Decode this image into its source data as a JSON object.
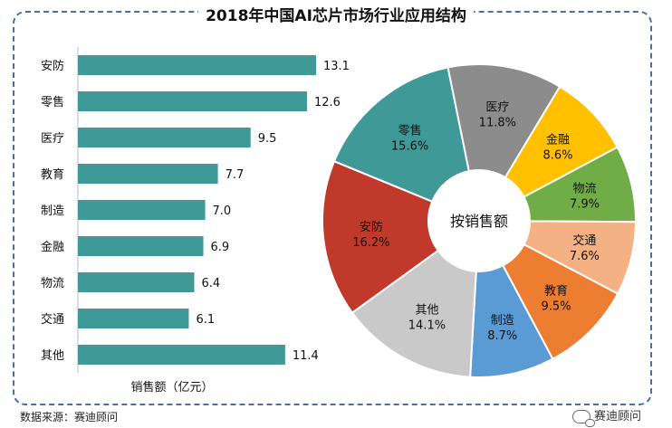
{
  "title": "2018年中国AI芯片市场行业应用结构",
  "source_label": "数据来源：赛迪顾问",
  "wechat_label": "赛迪顾问",
  "chart_data": [
    {
      "type": "bar",
      "orientation": "horizontal",
      "categories": [
        "安防",
        "零售",
        "医疗",
        "教育",
        "制造",
        "金融",
        "物流",
        "交通",
        "其他"
      ],
      "values": [
        13.1,
        12.6,
        9.5,
        7.7,
        7.0,
        6.9,
        6.4,
        6.1,
        11.4
      ],
      "xlabel": "销售额（亿元）",
      "xlim": [
        0,
        14
      ],
      "bar_color": "#3f9a97",
      "grid": false
    },
    {
      "type": "pie",
      "style": "donut",
      "center_label": "按销售额",
      "slices": [
        {
          "label": "金融",
          "value": 8.6,
          "display": "8.6%",
          "color": "#ffc000"
        },
        {
          "label": "物流",
          "value": 7.9,
          "display": "7.9%",
          "color": "#70ad47"
        },
        {
          "label": "交通",
          "value": 7.6,
          "display": "7.6%",
          "color": "#f4b183"
        },
        {
          "label": "教育",
          "value": 9.5,
          "display": "9.5%",
          "color": "#ed7d31"
        },
        {
          "label": "制造",
          "value": 8.7,
          "display": "8.7%",
          "color": "#5b9bd5"
        },
        {
          "label": "其他",
          "value": 14.1,
          "display": "14.1%",
          "color": "#c9c9c9"
        },
        {
          "label": "安防",
          "value": 16.2,
          "display": "16.2%",
          "color": "#c0392b"
        },
        {
          "label": "零售",
          "value": 15.6,
          "display": "15.6%",
          "color": "#3f9a97"
        },
        {
          "label": "医疗",
          "value": 11.8,
          "display": "11.8%",
          "color": "#8c8c8c"
        }
      ],
      "start_angle_deg": -59
    }
  ]
}
